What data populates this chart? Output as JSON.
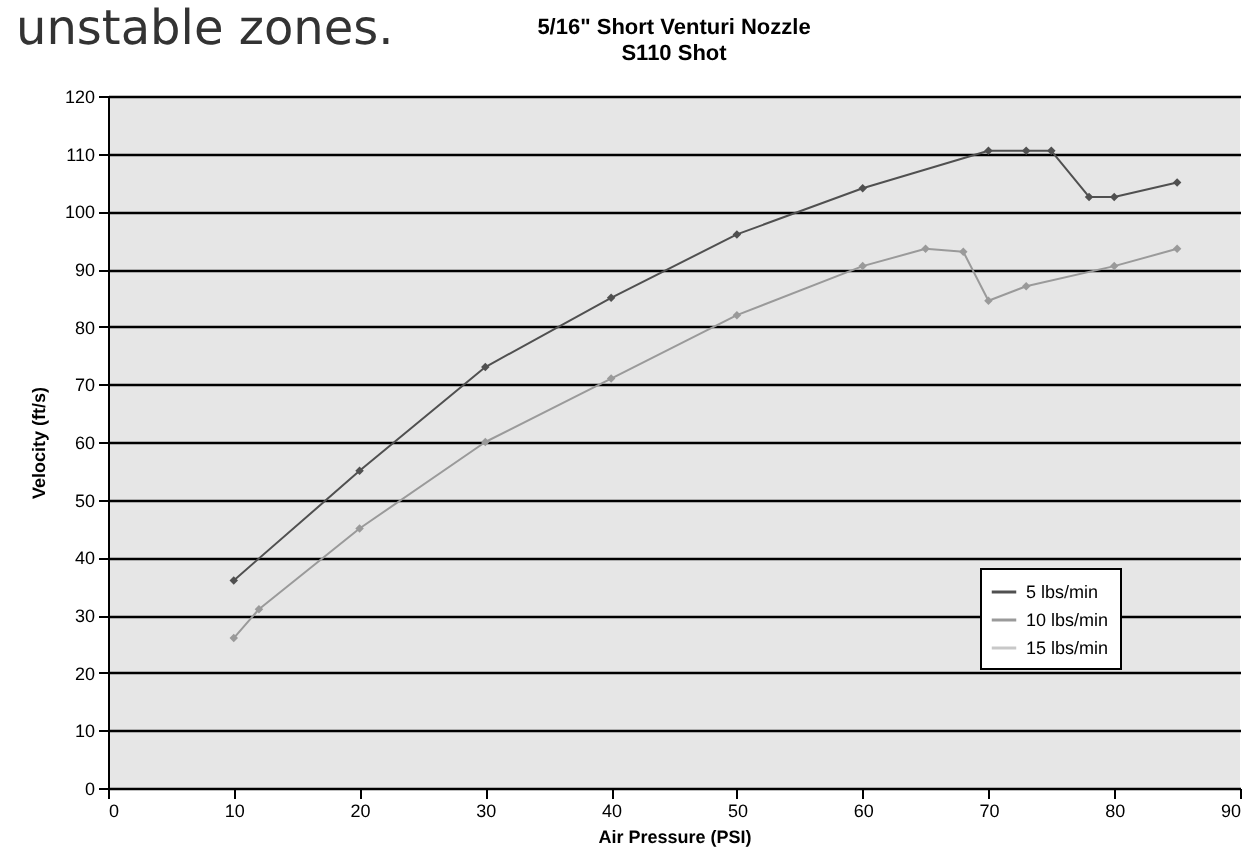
{
  "chart_data": {
    "type": "line",
    "title": "5/16\" Short Venturi Nozzle",
    "subtitle": "S110 Shot",
    "xlabel": "Air Pressure (PSI)",
    "ylabel": "Velocity (ft/s)",
    "annotations": [
      "unstable zones."
    ],
    "series": [
      {
        "name": "5 lbs/min",
        "color": "#505050",
        "x": [
          10,
          20,
          30,
          40,
          50,
          60,
          70,
          73,
          75,
          78,
          80,
          85
        ],
        "values": [
          36,
          55,
          73,
          85,
          96,
          104,
          110.5,
          110.5,
          110.5,
          102.5,
          102.5,
          105
        ]
      },
      {
        "name": "10 lbs/min",
        "color": "#9a9a9a",
        "x": [
          10,
          12,
          20,
          30,
          40,
          50,
          60,
          65,
          68,
          70,
          73,
          80,
          85
        ],
        "values": [
          26,
          31,
          45,
          60,
          71,
          82,
          90.5,
          93.5,
          93,
          84.5,
          87,
          90.5,
          93.5
        ]
      },
      {
        "name": "15 lbs/min",
        "color": "#c8c8c8"
      }
    ],
    "xlim": [
      0,
      90
    ],
    "xticks": [
      0,
      10,
      20,
      30,
      40,
      50,
      60,
      70,
      80,
      90
    ],
    "ylim": [
      0,
      120
    ],
    "yticks": [
      0,
      10,
      20,
      30,
      40,
      50,
      60,
      70,
      80,
      90,
      100,
      110,
      120
    ],
    "grid": "y",
    "legend": "bottom right",
    "marker": "diamond",
    "line_style": "solid"
  }
}
